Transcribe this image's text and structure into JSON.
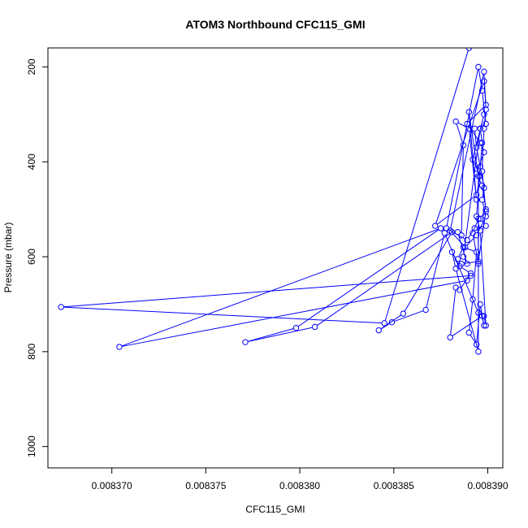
{
  "chart_data": {
    "type": "scatter",
    "title": "ATOM3 Northbound CFC115_GMI",
    "xlabel": "CFC115_GMI",
    "ylabel": "Pressure (mbar)",
    "xlim": [
      0.0083666,
      0.0083908
    ],
    "ylim": [
      1045,
      160
    ],
    "y_reversed": true,
    "x_ticks": [
      0.00837,
      0.008375,
      0.00838,
      0.008385,
      0.00839
    ],
    "x_tick_labels": [
      "0.008370",
      "0.008375",
      "0.008380",
      "0.008385",
      "0.008390"
    ],
    "y_ticks": [
      200,
      400,
      600,
      800,
      1000
    ],
    "y_tick_labels": [
      "200",
      "400",
      "600",
      "800",
      "1000"
    ],
    "line_color": "#0000ff",
    "grid": false,
    "legend": "none",
    "series": [
      {
        "points": [
          [
            0.0083898,
            300
          ],
          [
            0.0083892,
            395
          ],
          [
            0.0083896,
            430
          ],
          [
            0.0083894,
            470
          ],
          [
            0.0083872,
            535
          ],
          [
            0.0083898,
            230
          ],
          [
            0.0083899,
            280
          ],
          [
            0.0083889,
            320
          ],
          [
            0.0083896,
            360
          ],
          [
            0.0083898,
            380
          ],
          [
            0.0083894,
            425
          ],
          [
            0.0083897,
            450
          ],
          [
            0.0083899,
            500
          ],
          [
            0.0083896,
            520
          ],
          [
            0.0083899,
            535
          ],
          [
            0.0083893,
            540
          ],
          [
            0.0083889,
            565
          ],
          [
            0.0083878,
            540
          ],
          [
            0.0083895,
            200
          ],
          [
            0.0083897,
            250
          ],
          [
            0.0083899,
            320
          ],
          [
            0.0083893,
            330
          ],
          [
            0.0083894,
            370
          ],
          [
            0.0083896,
            410
          ],
          [
            0.0083898,
            455
          ],
          [
            0.0083897,
            480
          ],
          [
            0.0083899,
            515
          ],
          [
            0.0083894,
            555
          ],
          [
            0.0083888,
            580
          ],
          [
            0.008388,
            545
          ],
          [
            0.0083898,
            210
          ],
          [
            0.0083899,
            290
          ],
          [
            0.0083898,
            330
          ],
          [
            0.0083897,
            420
          ],
          [
            0.0083899,
            505
          ],
          [
            0.0083895,
            610
          ],
          [
            0.0083886,
            615
          ],
          [
            0.0083884,
            605
          ],
          [
            0.0083887,
            580
          ],
          [
            0.0083894,
            590
          ],
          [
            0.0083892,
            690
          ],
          [
            0.008389,
            760
          ],
          [
            0.0083894,
            785
          ],
          [
            0.0083896,
            700
          ],
          [
            0.0083898,
            745
          ],
          [
            0.0083897,
            725
          ],
          [
            0.008388,
            770
          ],
          [
            0.0083883,
            665
          ],
          [
            0.0083885,
            670
          ],
          [
            0.0083891,
            635
          ],
          [
            0.0083885,
            620
          ],
          [
            0.0083881,
            590
          ],
          [
            0.0083883,
            625
          ],
          [
            0.0083895,
            800
          ],
          [
            0.0083895,
            520
          ],
          [
            0.0083892,
            550
          ],
          [
            0.0083895,
            615
          ],
          [
            0.0083895,
            430
          ],
          [
            0.008389,
            295
          ],
          [
            0.0083894,
            480
          ],
          [
            0.008389,
            330
          ],
          [
            0.0083883,
            315
          ],
          [
            0.0083887,
            365
          ],
          [
            0.0083886,
            555
          ],
          [
            0.0083884,
            548
          ],
          [
            0.0083889,
            615
          ],
          [
            0.0083887,
            600
          ],
          [
            0.0083896,
            330
          ],
          [
            0.0083897,
            360
          ],
          [
            0.0083894,
            515
          ],
          [
            0.0083896,
            545
          ],
          [
            0.0083899,
            745
          ],
          [
            0.0083898,
            725
          ],
          [
            0.0083895,
            718
          ],
          [
            0.0083877,
            550
          ],
          [
            0.0083867,
            712
          ],
          [
            0.0083849,
            738
          ],
          [
            0.0083842,
            755
          ],
          [
            0.0083855,
            720
          ],
          [
            0.0083881,
            548
          ],
          [
            0.0083808,
            748
          ],
          [
            0.0083771,
            780
          ],
          [
            0.0083798,
            750
          ],
          [
            0.0083875,
            540
          ],
          [
            0.0083704,
            790
          ],
          [
            0.0083889,
            650
          ],
          [
            0.0083891,
            640
          ],
          [
            0.0083673,
            706
          ],
          [
            0.0083845,
            740
          ],
          [
            0.008389,
            160
          ]
        ]
      }
    ]
  }
}
